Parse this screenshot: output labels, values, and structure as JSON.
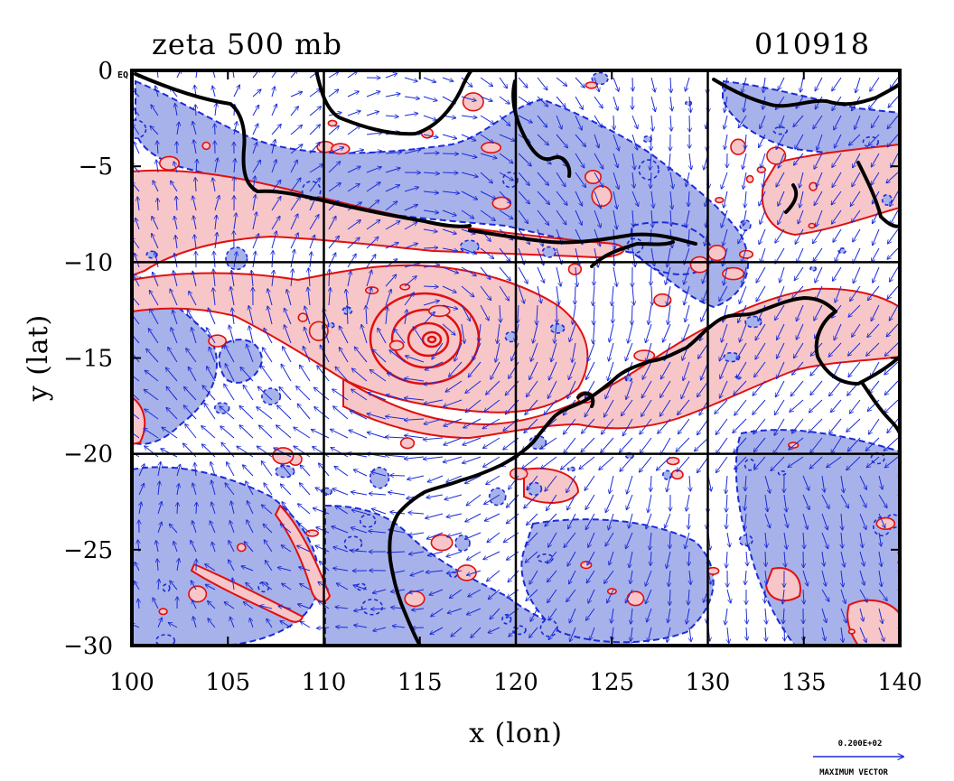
{
  "title": "zeta 500 mb",
  "date_label": "010918",
  "corner_label": "EQ",
  "chart_data": {
    "type": "map",
    "title": "zeta 500 mb",
    "date": "010918",
    "xlabel": "x (lon)",
    "ylabel": "y (lat)",
    "xlim": [
      100,
      140
    ],
    "ylim": [
      -30,
      0
    ],
    "x_ticks": [
      100,
      105,
      110,
      115,
      120,
      125,
      130,
      135,
      140
    ],
    "x_tick_labels": [
      "100",
      "105",
      "110",
      "115",
      "120",
      "125",
      "130",
      "135",
      "140"
    ],
    "y_ticks": [
      0,
      -5,
      -10,
      -15,
      -20,
      -25,
      -30
    ],
    "y_tick_labels": [
      "0",
      "−5",
      "−10",
      "−15",
      "−20",
      "−25",
      "−30"
    ],
    "grid_lon": [
      110,
      120,
      130
    ],
    "grid_lat": [
      -10,
      -20
    ],
    "vortex_center": [
      115.8,
      -14.0
    ],
    "colors": {
      "positive_fill": "#f7c6c8",
      "positive_contour": "#e01010",
      "negative_fill": "#a8b2ea",
      "negative_contour": "#1a2bd8",
      "vector": "#1a2bd8",
      "coast": "#000000"
    },
    "vector_legend": {
      "value": "0.200E+02",
      "label": "MAXIMUM VECTOR"
    }
  }
}
